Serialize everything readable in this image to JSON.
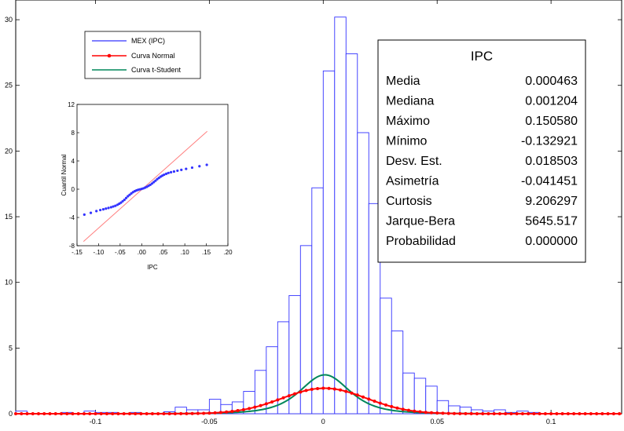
{
  "chart_data": [
    {
      "type": "bar",
      "title": "",
      "xlim": [
        -0.135,
        0.131
      ],
      "ylim": [
        0,
        31.5
      ],
      "x_ticks": [
        -0.1,
        -0.05,
        0,
        0.05,
        0.1
      ],
      "x_tick_labels": [
        "-0.1",
        "-0.05",
        "0",
        "0.05",
        "0.1"
      ],
      "y_ticks": [
        0,
        5,
        10,
        15,
        20,
        25,
        30
      ],
      "y_tick_labels": [
        "0",
        "5",
        "10",
        "15",
        "20",
        "25",
        "30"
      ],
      "bin_width": 0.005,
      "bins": [
        {
          "x": -0.1325,
          "y": 0.2
        },
        {
          "x": -0.1125,
          "y": 0.1
        },
        {
          "x": -0.1025,
          "y": 0.2
        },
        {
          "x": -0.0975,
          "y": 0.1
        },
        {
          "x": -0.0925,
          "y": 0.1
        },
        {
          "x": -0.0825,
          "y": 0.1
        },
        {
          "x": -0.0675,
          "y": 0.15
        },
        {
          "x": -0.0625,
          "y": 0.5
        },
        {
          "x": -0.0575,
          "y": 0.3
        },
        {
          "x": -0.0525,
          "y": 0.3
        },
        {
          "x": -0.0475,
          "y": 1.1
        },
        {
          "x": -0.0425,
          "y": 0.7
        },
        {
          "x": -0.0375,
          "y": 0.9
        },
        {
          "x": -0.0325,
          "y": 1.7
        },
        {
          "x": -0.0275,
          "y": 3.3
        },
        {
          "x": -0.0225,
          "y": 5.1
        },
        {
          "x": -0.0175,
          "y": 7.0
        },
        {
          "x": -0.0125,
          "y": 9.0
        },
        {
          "x": -0.0075,
          "y": 12.8
        },
        {
          "x": -0.0025,
          "y": 17.2
        },
        {
          "x": 0.0025,
          "y": 26.1
        },
        {
          "x": 0.0075,
          "y": 30.2
        },
        {
          "x": 0.0125,
          "y": 27.4
        },
        {
          "x": 0.0175,
          "y": 21.4
        },
        {
          "x": 0.0225,
          "y": 16.0
        },
        {
          "x": 0.0275,
          "y": 8.8
        },
        {
          "x": 0.0325,
          "y": 6.3
        },
        {
          "x": 0.0375,
          "y": 3.1
        },
        {
          "x": 0.0425,
          "y": 2.7
        },
        {
          "x": 0.0475,
          "y": 2.1
        },
        {
          "x": 0.0525,
          "y": 1.0
        },
        {
          "x": 0.0575,
          "y": 0.6
        },
        {
          "x": 0.0625,
          "y": 0.5
        },
        {
          "x": 0.0675,
          "y": 0.3
        },
        {
          "x": 0.0725,
          "y": 0.2
        },
        {
          "x": 0.0775,
          "y": 0.3
        },
        {
          "x": 0.0825,
          "y": 0.1
        },
        {
          "x": 0.0875,
          "y": 0.2
        },
        {
          "x": 0.0925,
          "y": 0.1
        }
      ],
      "curves": [
        {
          "name": "Curva Normal",
          "dist": "normal",
          "mean": 0.000463,
          "sd": 0.018503,
          "n_scale": 0.09,
          "color": "#ff0000",
          "markers": true
        },
        {
          "name": "Curva t-Student",
          "dist": "t",
          "mean": 0.0007,
          "scale": 0.0113,
          "df": 3.5,
          "n_scale": 0.09,
          "color": "#00875a",
          "markers": false
        }
      ],
      "legend": {
        "position": "top-left",
        "entries": [
          {
            "label": "MEX (IPC)",
            "color": "#3333ff",
            "marker": false
          },
          {
            "label": "Curva Normal",
            "color": "#ff0000",
            "marker": true
          },
          {
            "label": "Curva t-Student",
            "color": "#00875a",
            "marker": false
          }
        ]
      },
      "stats": {
        "title": "IPC",
        "rows": [
          {
            "label": "Media",
            "value": "0.000463"
          },
          {
            "label": "Mediana",
            "value": "0.001204"
          },
          {
            "label": "Máximo",
            "value": "0.150580"
          },
          {
            "label": "Mínimo",
            "value": "-0.132921"
          },
          {
            "label": "Desv. Est.",
            "value": "0.018503"
          },
          {
            "label": "Asimetría",
            "value": "-0.041451"
          },
          {
            "label": "Curtosis",
            "value": "9.206297"
          },
          {
            "label": "Jarque-Bera",
            "value": "5645.517"
          },
          {
            "label": "Probabilidad",
            "value": "0.000000"
          }
        ]
      },
      "colors": {
        "bars": "#3333ff",
        "normal": "#ff0000",
        "t": "#00875a"
      }
    },
    {
      "type": "scatter",
      "title": "",
      "xlabel": "IPC",
      "ylabel": "Cuantil Normal",
      "xlim": [
        -0.15,
        0.2
      ],
      "ylim": [
        -8,
        12
      ],
      "x_ticks": [
        -0.15,
        -0.1,
        -0.05,
        0,
        0.05,
        0.1,
        0.15,
        0.2
      ],
      "x_tick_labels": [
        "-.15",
        "-.10",
        "-.05",
        ".00",
        ".05",
        ".10",
        ".15",
        ".20"
      ],
      "y_ticks": [
        -8,
        -4,
        0,
        4,
        8,
        12
      ],
      "y_tick_labels": [
        "-8",
        "-4",
        "0",
        "4",
        "8",
        "12"
      ],
      "reference_line": {
        "x": [
          -0.135,
          0.152
        ],
        "y": [
          -7.4,
          8.2
        ],
        "color": "#ff8080"
      },
      "points_color": "#3333ff",
      "points": [
        [
          -0.133,
          -3.6
        ],
        [
          -0.118,
          -3.35
        ],
        [
          -0.105,
          -3.1
        ],
        [
          -0.096,
          -2.95
        ],
        [
          -0.089,
          -2.85
        ],
        [
          -0.083,
          -2.75
        ],
        [
          -0.077,
          -2.65
        ],
        [
          -0.071,
          -2.55
        ],
        [
          -0.066,
          -2.45
        ],
        [
          -0.061,
          -2.35
        ],
        [
          -0.056,
          -2.2
        ],
        [
          -0.052,
          -2.05
        ],
        [
          -0.048,
          -1.9
        ],
        [
          -0.044,
          -1.7
        ],
        [
          -0.04,
          -1.5
        ],
        [
          -0.036,
          -1.25
        ],
        [
          -0.032,
          -1.0
        ],
        [
          -0.028,
          -0.8
        ],
        [
          -0.024,
          -0.6
        ],
        [
          -0.02,
          -0.42
        ],
        [
          -0.016,
          -0.28
        ],
        [
          -0.012,
          -0.17
        ],
        [
          -0.008,
          -0.08
        ],
        [
          -0.004,
          -0.02
        ],
        [
          0.0,
          0.04
        ],
        [
          0.004,
          0.12
        ],
        [
          0.008,
          0.22
        ],
        [
          0.012,
          0.34
        ],
        [
          0.016,
          0.48
        ],
        [
          0.02,
          0.62
        ],
        [
          0.024,
          0.8
        ],
        [
          0.028,
          1.0
        ],
        [
          0.032,
          1.2
        ],
        [
          0.036,
          1.42
        ],
        [
          0.04,
          1.6
        ],
        [
          0.044,
          1.78
        ],
        [
          0.048,
          1.92
        ],
        [
          0.052,
          2.05
        ],
        [
          0.057,
          2.18
        ],
        [
          0.062,
          2.3
        ],
        [
          0.068,
          2.4
        ],
        [
          0.075,
          2.5
        ],
        [
          0.083,
          2.62
        ],
        [
          0.092,
          2.74
        ],
        [
          0.103,
          2.88
        ],
        [
          0.117,
          3.05
        ],
        [
          0.134,
          3.25
        ],
        [
          0.151,
          3.45
        ]
      ]
    }
  ]
}
